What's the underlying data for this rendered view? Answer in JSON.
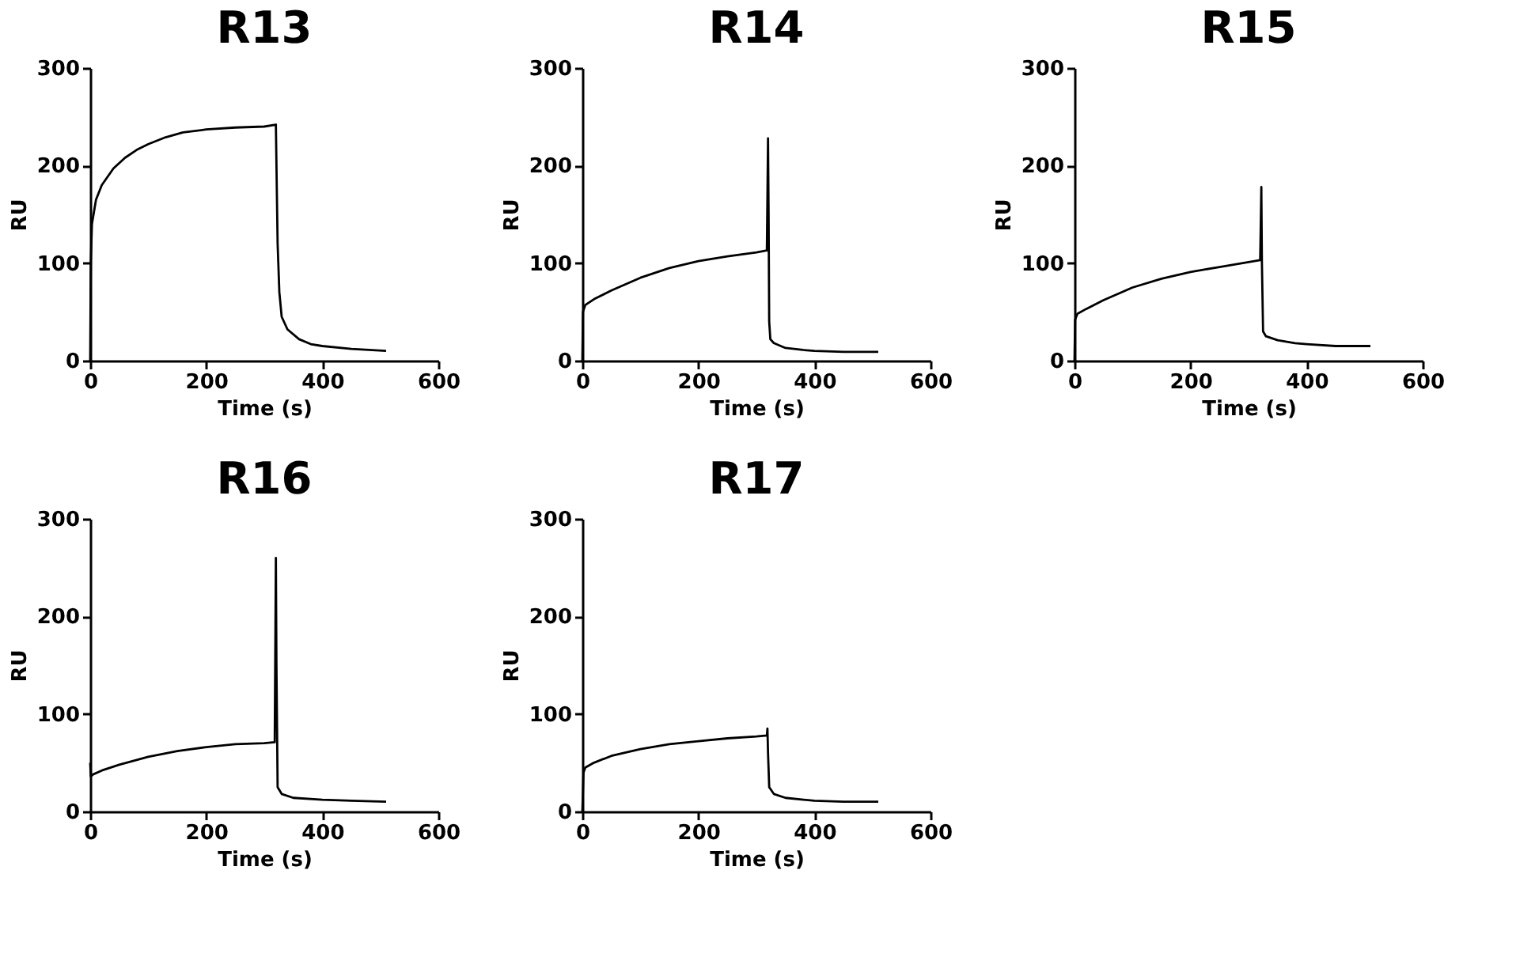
{
  "chart_data": [
    {
      "type": "line",
      "title": "R13",
      "xlabel": "Time (s)",
      "ylabel": "RU",
      "xlim": [
        0,
        600
      ],
      "xticks": [
        0,
        200,
        400,
        600
      ],
      "ylim": [
        0,
        300
      ],
      "yticks": [
        0,
        100,
        200,
        300
      ],
      "line_style": "solid",
      "series": [
        {
          "color": "#000000",
          "x": [
            0,
            1,
            3,
            10,
            20,
            40,
            60,
            80,
            100,
            130,
            160,
            200,
            250,
            300,
            320,
            321,
            323,
            326,
            330,
            340,
            360,
            380,
            400,
            450,
            510
          ],
          "values": [
            0,
            100,
            140,
            165,
            180,
            197,
            208,
            216,
            222,
            229,
            234,
            237,
            239,
            240,
            242,
            200,
            120,
            70,
            45,
            32,
            22,
            17,
            15,
            12,
            10
          ]
        }
      ]
    },
    {
      "type": "line",
      "title": "R14",
      "xlabel": "Time (s)",
      "ylabel": "RU",
      "xlim": [
        0,
        600
      ],
      "xticks": [
        0,
        200,
        400,
        600
      ],
      "ylim": [
        0,
        300
      ],
      "yticks": [
        0,
        100,
        200,
        300
      ],
      "line_style": "solid",
      "series": [
        {
          "color": "#000000",
          "x": [
            0,
            1,
            5,
            20,
            50,
            100,
            150,
            200,
            250,
            300,
            318,
            320,
            321,
            322,
            324,
            330,
            350,
            380,
            400,
            450,
            510
          ],
          "values": [
            0,
            50,
            57,
            63,
            72,
            85,
            95,
            102,
            107,
            111,
            113,
            228,
            150,
            40,
            22,
            18,
            13,
            11,
            10,
            9,
            9
          ]
        }
      ]
    },
    {
      "type": "line",
      "title": "R15",
      "xlabel": "Time (s)",
      "ylabel": "RU",
      "xlim": [
        0,
        600
      ],
      "xticks": [
        0,
        200,
        400,
        600
      ],
      "ylim": [
        0,
        300
      ],
      "yticks": [
        0,
        100,
        200,
        300
      ],
      "line_style": "solid",
      "series": [
        {
          "color": "#000000",
          "x": [
            0,
            1,
            5,
            20,
            50,
            100,
            150,
            200,
            250,
            300,
            320,
            322,
            323,
            325,
            330,
            350,
            380,
            400,
            450,
            510
          ],
          "values": [
            0,
            42,
            48,
            53,
            62,
            75,
            84,
            91,
            96,
            101,
            103,
            178,
            100,
            30,
            25,
            21,
            18,
            17,
            15,
            15
          ]
        }
      ]
    },
    {
      "type": "line",
      "title": "R16",
      "xlabel": "Time (s)",
      "ylabel": "RU",
      "xlim": [
        0,
        600
      ],
      "xticks": [
        0,
        200,
        400,
        600
      ],
      "ylim": [
        0,
        300
      ],
      "yticks": [
        0,
        100,
        200,
        300
      ],
      "line_style": "solid",
      "series": [
        {
          "color": "#000000",
          "x": [
            0,
            1,
            5,
            20,
            50,
            100,
            150,
            200,
            250,
            300,
            318,
            320,
            321,
            323,
            330,
            350,
            400,
            450,
            510
          ],
          "values": [
            50,
            36,
            38,
            42,
            48,
            56,
            62,
            66,
            69,
            70,
            71,
            260,
            150,
            25,
            18,
            14,
            12,
            11,
            10
          ]
        }
      ]
    },
    {
      "type": "line",
      "title": "R17",
      "xlabel": "Time (s)",
      "ylabel": "RU",
      "xlim": [
        0,
        600
      ],
      "xticks": [
        0,
        200,
        400,
        600
      ],
      "ylim": [
        0,
        300
      ],
      "yticks": [
        0,
        100,
        200,
        300
      ],
      "line_style": "solid",
      "series": [
        {
          "color": "#000000",
          "x": [
            0,
            2,
            5,
            20,
            50,
            100,
            150,
            200,
            250,
            300,
            318,
            319,
            320,
            322,
            330,
            350,
            400,
            450,
            510
          ],
          "values": [
            0,
            40,
            45,
            50,
            57,
            64,
            69,
            72,
            75,
            77,
            78,
            85,
            60,
            25,
            18,
            14,
            11,
            10,
            10
          ]
        }
      ]
    }
  ]
}
